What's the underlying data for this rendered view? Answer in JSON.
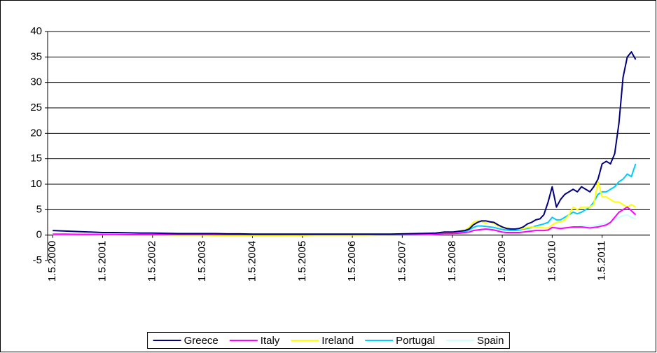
{
  "chart_data": {
    "type": "line",
    "x": [
      "2000-05-01",
      "2000-08-01",
      "2000-11-01",
      "2001-02-01",
      "2001-05-01",
      "2001-08-01",
      "2001-11-01",
      "2002-02-01",
      "2002-05-01",
      "2002-08-01",
      "2002-11-01",
      "2003-02-01",
      "2003-05-01",
      "2003-08-01",
      "2003-11-01",
      "2004-02-01",
      "2004-05-01",
      "2004-08-01",
      "2004-11-01",
      "2005-02-01",
      "2005-05-01",
      "2005-08-01",
      "2005-11-01",
      "2006-02-01",
      "2006-05-01",
      "2006-08-01",
      "2006-11-01",
      "2007-02-01",
      "2007-05-01",
      "2007-08-01",
      "2007-11-01",
      "2008-01-01",
      "2008-02-01",
      "2008-03-01",
      "2008-04-01",
      "2008-05-01",
      "2008-06-01",
      "2008-07-01",
      "2008-08-01",
      "2008-09-01",
      "2008-10-01",
      "2008-11-01",
      "2008-12-01",
      "2009-01-01",
      "2009-02-01",
      "2009-03-01",
      "2009-04-01",
      "2009-05-01",
      "2009-06-01",
      "2009-07-01",
      "2009-08-01",
      "2009-09-01",
      "2009-10-01",
      "2009-11-01",
      "2009-12-01",
      "2010-01-01",
      "2010-02-01",
      "2010-03-01",
      "2010-04-01",
      "2010-05-01",
      "2010-06-01",
      "2010-07-01",
      "2010-08-01",
      "2010-09-01",
      "2010-10-01",
      "2010-11-01",
      "2010-12-01",
      "2011-01-01",
      "2011-02-01",
      "2011-03-01",
      "2011-04-01",
      "2011-05-01",
      "2011-06-01",
      "2011-07-01",
      "2011-08-01",
      "2011-09-01",
      "2011-10-01",
      "2011-11-01",
      "2011-12-01",
      "2012-01-01"
    ],
    "series": [
      {
        "name": "Greece",
        "color": "#000080",
        "values": [
          0.9,
          0.8,
          0.7,
          0.6,
          0.5,
          0.5,
          0.45,
          0.4,
          0.4,
          0.35,
          0.3,
          0.3,
          0.3,
          0.3,
          0.25,
          0.25,
          0.2,
          0.2,
          0.2,
          0.2,
          0.2,
          0.2,
          0.2,
          0.2,
          0.2,
          0.2,
          0.2,
          0.2,
          0.25,
          0.3,
          0.35,
          0.4,
          0.5,
          0.6,
          0.6,
          0.6,
          0.7,
          0.8,
          0.9,
          1.2,
          2.0,
          2.5,
          2.8,
          2.8,
          2.6,
          2.5,
          2.0,
          1.6,
          1.3,
          1.2,
          1.2,
          1.3,
          1.6,
          2.2,
          2.5,
          3.0,
          3.2,
          4.0,
          6.5,
          9.5,
          5.5,
          7.0,
          8.0,
          8.5,
          9.0,
          8.5,
          9.5,
          9.0,
          8.5,
          9.5,
          11.0,
          14.0,
          14.5,
          14.0,
          16.0,
          22.0,
          31.0,
          35.0,
          36.0,
          34.5
        ]
      },
      {
        "name": "Italy",
        "color": "#ff00ff",
        "values": [
          0.2,
          0.2,
          0.15,
          0.15,
          0.15,
          0.15,
          0.1,
          0.1,
          0.1,
          0.1,
          0.1,
          0.1,
          0.1,
          0.1,
          0.1,
          0.1,
          0.1,
          0.1,
          0.1,
          0.1,
          0.1,
          0.1,
          0.1,
          0.1,
          0.1,
          0.1,
          0.1,
          0.1,
          0.15,
          0.15,
          0.2,
          0.2,
          0.25,
          0.3,
          0.3,
          0.3,
          0.35,
          0.4,
          0.5,
          0.6,
          0.9,
          1.0,
          1.1,
          1.2,
          1.1,
          1.0,
          0.8,
          0.6,
          0.5,
          0.5,
          0.5,
          0.5,
          0.6,
          0.7,
          0.8,
          0.9,
          0.9,
          0.9,
          1.0,
          1.5,
          1.4,
          1.3,
          1.4,
          1.5,
          1.6,
          1.6,
          1.6,
          1.5,
          1.4,
          1.5,
          1.6,
          1.8,
          2.0,
          2.5,
          3.5,
          4.5,
          5.0,
          5.5,
          4.8,
          4.0
        ]
      },
      {
        "name": "Ireland",
        "color": "#ffff00",
        "values": [
          0.1,
          0.1,
          0.1,
          0.1,
          0.05,
          0.05,
          0.05,
          0.05,
          0.05,
          0.05,
          0,
          0,
          0,
          -0.05,
          -0.1,
          -0.1,
          -0.1,
          -0.1,
          -0.1,
          -0.05,
          -0.05,
          0,
          0,
          0,
          0,
          0,
          0.05,
          0.05,
          0.1,
          0.1,
          0.15,
          0.2,
          0.3,
          0.4,
          0.5,
          0.5,
          0.6,
          0.8,
          1.0,
          1.5,
          2.5,
          2.8,
          2.6,
          2.4,
          2.6,
          2.3,
          1.8,
          1.5,
          1.4,
          1.3,
          1.2,
          1.2,
          1.3,
          1.5,
          1.6,
          1.5,
          1.5,
          1.4,
          1.4,
          2.0,
          2.5,
          2.6,
          3.0,
          4.0,
          5.5,
          5.0,
          5.5,
          5.5,
          5.5,
          6.0,
          10.5,
          7.5,
          7.5,
          7.0,
          6.5,
          6.5,
          6.0,
          5.5,
          6.0,
          5.5
        ]
      },
      {
        "name": "Portugal",
        "color": "#00ccff",
        "values": [
          0.15,
          0.15,
          0.15,
          0.15,
          0.1,
          0.1,
          0.1,
          0.1,
          0.1,
          0.1,
          0.1,
          0.1,
          0.1,
          0.1,
          0.1,
          0.1,
          0.1,
          0.1,
          0.1,
          0.1,
          0.1,
          0.1,
          0.1,
          0.1,
          0.1,
          0.1,
          0.1,
          0.1,
          0.1,
          0.15,
          0.15,
          0.2,
          0.3,
          0.3,
          0.4,
          0.4,
          0.5,
          0.6,
          0.7,
          1.0,
          1.5,
          1.8,
          1.8,
          1.7,
          1.6,
          1.5,
          1.3,
          1.1,
          1.0,
          0.9,
          0.9,
          1.0,
          1.2,
          1.3,
          1.5,
          1.8,
          2.0,
          2.2,
          2.5,
          3.5,
          3.0,
          3.0,
          3.5,
          4.0,
          4.5,
          4.2,
          4.5,
          5.0,
          5.5,
          6.5,
          8.0,
          8.5,
          8.5,
          9.0,
          9.5,
          10.5,
          11.0,
          12.0,
          11.5,
          14.0
        ]
      },
      {
        "name": "Spain",
        "color": "#ccffff",
        "values": [
          0.1,
          0.1,
          0.1,
          0.1,
          0.1,
          0.1,
          0.1,
          0.1,
          0.1,
          0.1,
          0.1,
          0.1,
          0.1,
          0.1,
          0.1,
          0.1,
          0.1,
          0.1,
          0.1,
          0.1,
          0.1,
          0.1,
          0.1,
          0.1,
          0.1,
          0.1,
          0.1,
          0.1,
          0.1,
          0.1,
          0.1,
          0.15,
          0.2,
          0.25,
          0.3,
          0.3,
          0.35,
          0.4,
          0.5,
          0.6,
          0.8,
          1.0,
          1.0,
          1.0,
          0.9,
          0.8,
          0.7,
          0.6,
          0.5,
          0.5,
          0.5,
          0.5,
          0.6,
          0.7,
          0.8,
          0.9,
          0.9,
          0.9,
          1.0,
          1.3,
          1.3,
          1.2,
          1.3,
          1.5,
          1.6,
          1.6,
          1.8,
          1.8,
          1.7,
          1.8,
          2.0,
          2.2,
          2.3,
          2.5,
          3.0,
          3.5,
          3.8,
          4.0,
          3.5,
          3.2
        ]
      }
    ],
    "xlim": [
      "2000-03-25",
      "2012-04-15"
    ],
    "xticks": [
      {
        "value": "2000-05-01",
        "label": "1.5.2000"
      },
      {
        "value": "2001-05-01",
        "label": "1.5.2001"
      },
      {
        "value": "2002-05-01",
        "label": "1.5.2002"
      },
      {
        "value": "2003-05-01",
        "label": "1.5.2003"
      },
      {
        "value": "2004-05-01",
        "label": "1.5.2004"
      },
      {
        "value": "2005-05-01",
        "label": "1.5.2005"
      },
      {
        "value": "2006-05-01",
        "label": "1.5.2006"
      },
      {
        "value": "2007-05-01",
        "label": "1.5.2007"
      },
      {
        "value": "2008-05-01",
        "label": "1.5.2008"
      },
      {
        "value": "2009-05-01",
        "label": "1.5.2009"
      },
      {
        "value": "2010-05-01",
        "label": "1.5.2010"
      },
      {
        "value": "2011-05-01",
        "label": "1.5.2011"
      }
    ],
    "ylim": [
      -5,
      40
    ],
    "yticks": [
      -5,
      0,
      5,
      10,
      15,
      20,
      25,
      30,
      35,
      40
    ],
    "grid": true,
    "legend": "bottom"
  }
}
